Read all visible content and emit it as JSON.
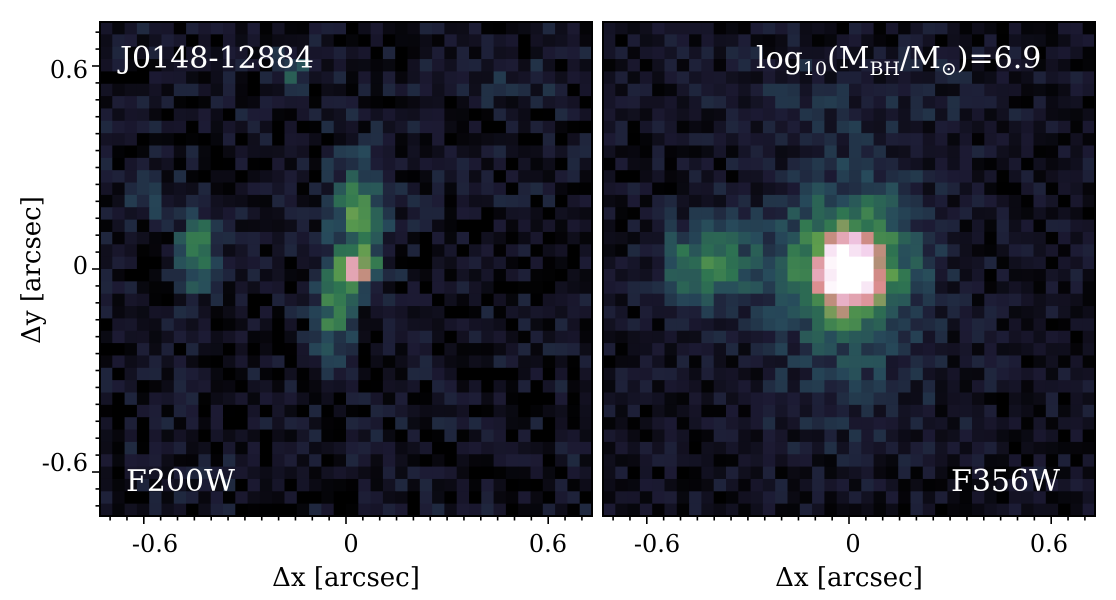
{
  "figure": {
    "object_name": "J0148-12884",
    "mass_label": {
      "prefix": "log",
      "prefix_sub": "10",
      "open": "(M",
      "bh_sub": "BH",
      "slash": "/M",
      "sun_sub": "⊙",
      "close": ")=6.9"
    },
    "axis_range_arcsec": [
      -0.73,
      0.73
    ],
    "tick_values": [
      -0.6,
      0,
      0.6
    ],
    "colormap": [
      "#000000",
      "#1c1a33",
      "#274a5b",
      "#2e7451",
      "#5f9e4d",
      "#d98a8a",
      "#f0c8e8",
      "#ffffff"
    ],
    "panels": [
      {
        "filter": "F200W",
        "xlabel": "Δx [arcsec]",
        "ylabel": "Δy [arcsec]",
        "x_tick_labels": [
          "-0.6",
          "0",
          "0.6"
        ],
        "y_tick_labels": [
          "0.6",
          "0",
          "-0.6"
        ]
      },
      {
        "filter": "F356W",
        "xlabel": "Δx [arcsec]",
        "x_tick_labels": [
          "-0.6",
          "0",
          "0.6"
        ]
      }
    ]
  }
}
